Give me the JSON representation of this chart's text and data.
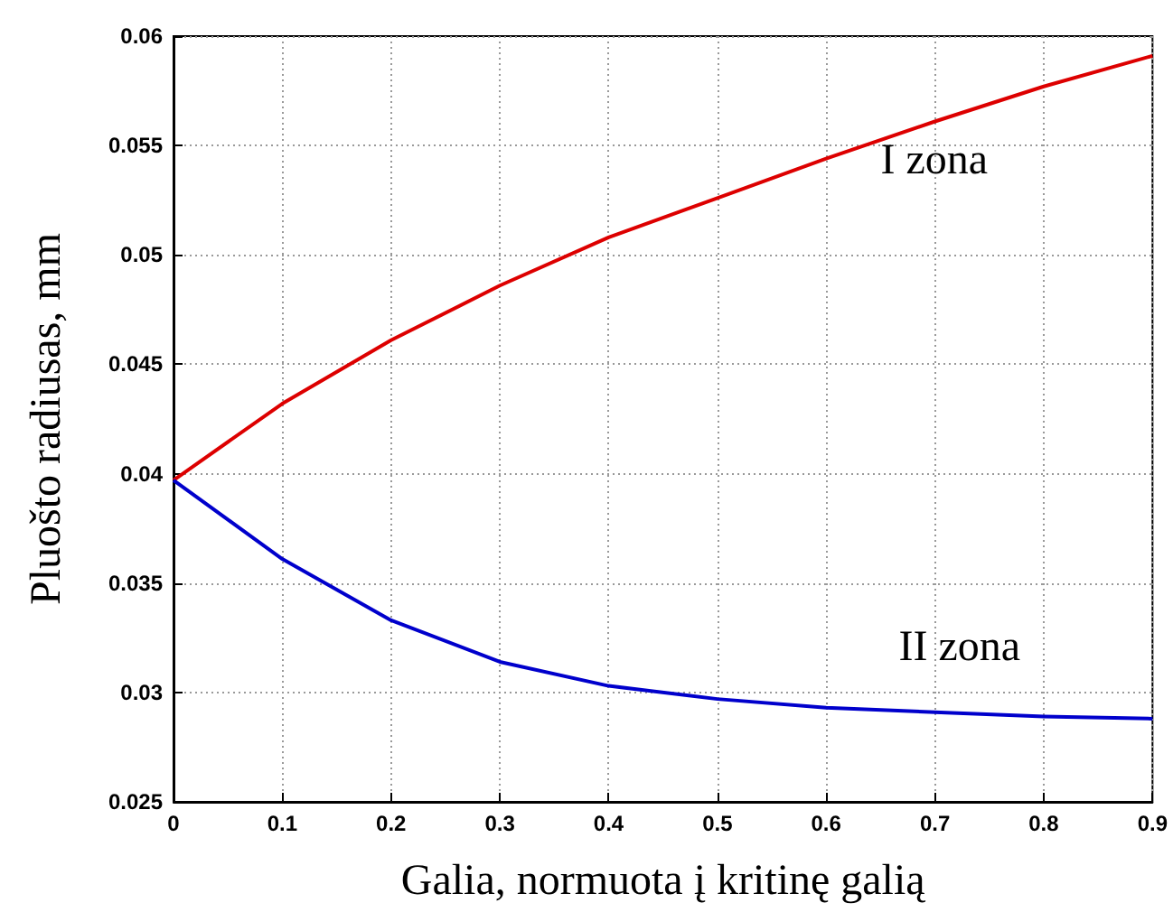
{
  "chart_data": {
    "type": "line",
    "xlabel": "Galia, normuota į kritinę galią",
    "ylabel": "Pluošto radiusas, mm",
    "x": [
      0,
      0.1,
      0.2,
      0.3,
      0.4,
      0.5,
      0.6,
      0.7,
      0.8,
      0.9
    ],
    "series": [
      {
        "name": "I zona",
        "color": "#dd0000",
        "values": [
          0.0397,
          0.0432,
          0.0461,
          0.0486,
          0.0508,
          0.0526,
          0.0544,
          0.0561,
          0.0577,
          0.0591
        ]
      },
      {
        "name": "II zona",
        "color": "#0000cc",
        "values": [
          0.0397,
          0.0361,
          0.0333,
          0.0314,
          0.0303,
          0.0297,
          0.0293,
          0.0291,
          0.0289,
          0.0288
        ]
      }
    ],
    "xlim": [
      0,
      0.9
    ],
    "xticks": [
      0,
      0.1,
      0.2,
      0.3,
      0.4,
      0.5,
      0.6,
      0.7,
      0.8,
      0.9
    ],
    "ylim": [
      0.025,
      0.06
    ],
    "yticks": [
      0.025,
      0.03,
      0.035,
      0.04,
      0.045,
      0.05,
      0.055,
      0.06
    ],
    "grid": true,
    "marker": "none",
    "line_style": "solid"
  }
}
